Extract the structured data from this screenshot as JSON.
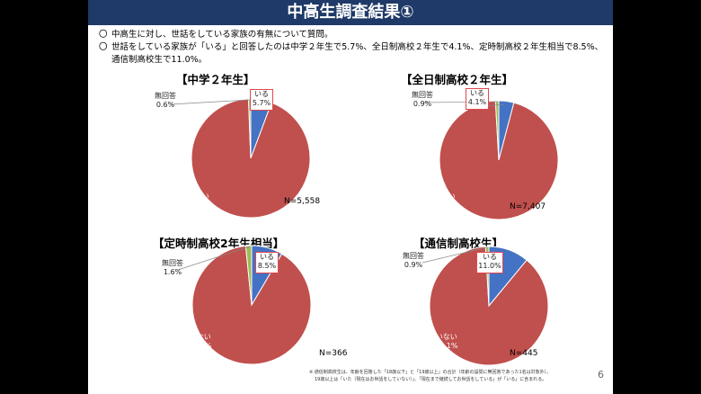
{
  "title": "中高生調査結果①",
  "bullets": [
    "中高生に対し、世話をしている家族の有無について質問。",
    "世話をしている家族が「いる」と回答したのは中学２年生で5.7%、全日制高校２年生で4.1%、定時制高校２年生相当で8.5%、通信制高校生で11.0%。"
  ],
  "bullet_mark": "〇",
  "colors": {
    "yes": "#4472c4",
    "no": "#c0504d",
    "na": "#9bbb59",
    "title_bg": "#1f3a68",
    "box": "#e0484f"
  },
  "chart_data": [
    {
      "type": "pie",
      "title": "【中学２年生】",
      "n": "N=5,558",
      "slices": [
        {
          "label": "いる",
          "value": 5.7,
          "text": "5.7%"
        },
        {
          "label": "いない",
          "value": 93.6,
          "text": "93.6%"
        },
        {
          "label": "無回答",
          "value": 0.6,
          "text": "0.6%"
        }
      ]
    },
    {
      "type": "pie",
      "title": "【全日制高校２年生】",
      "n": "N=7,407",
      "slices": [
        {
          "label": "いる",
          "value": 4.1,
          "text": "4.1%"
        },
        {
          "label": "いない",
          "value": 94.9,
          "text": "94.9%"
        },
        {
          "label": "無回答",
          "value": 0.9,
          "text": "0.9%"
        }
      ]
    },
    {
      "type": "pie",
      "title": "【定時制高校2年生相当】",
      "n": "N=366",
      "slices": [
        {
          "label": "いる",
          "value": 8.5,
          "text": "8.5%"
        },
        {
          "label": "いない",
          "value": 89.9,
          "text": "89.9%"
        },
        {
          "label": "無回答",
          "value": 1.6,
          "text": "1.6%"
        }
      ]
    },
    {
      "type": "pie",
      "title": "【通信制高校生】",
      "n": "N=445",
      "slices": [
        {
          "label": "いる",
          "value": 11.0,
          "text": "11.0%"
        },
        {
          "label": "いない",
          "value": 88.1,
          "text": "88.1%"
        },
        {
          "label": "無回答",
          "value": 0.9,
          "text": "0.9%"
        }
      ]
    }
  ],
  "footnote": [
    "※ 通信制高校生は、年齢を回答した「18歳以下」と「19歳以上」の合計（年齢の設問に無回答であった1名は対象外）。",
    "19歳以上は「いた（現在はお世話をしていない）」、「現在まで継続してお世話をしている」が「いる」に含まれる。"
  ],
  "page_number": "6"
}
